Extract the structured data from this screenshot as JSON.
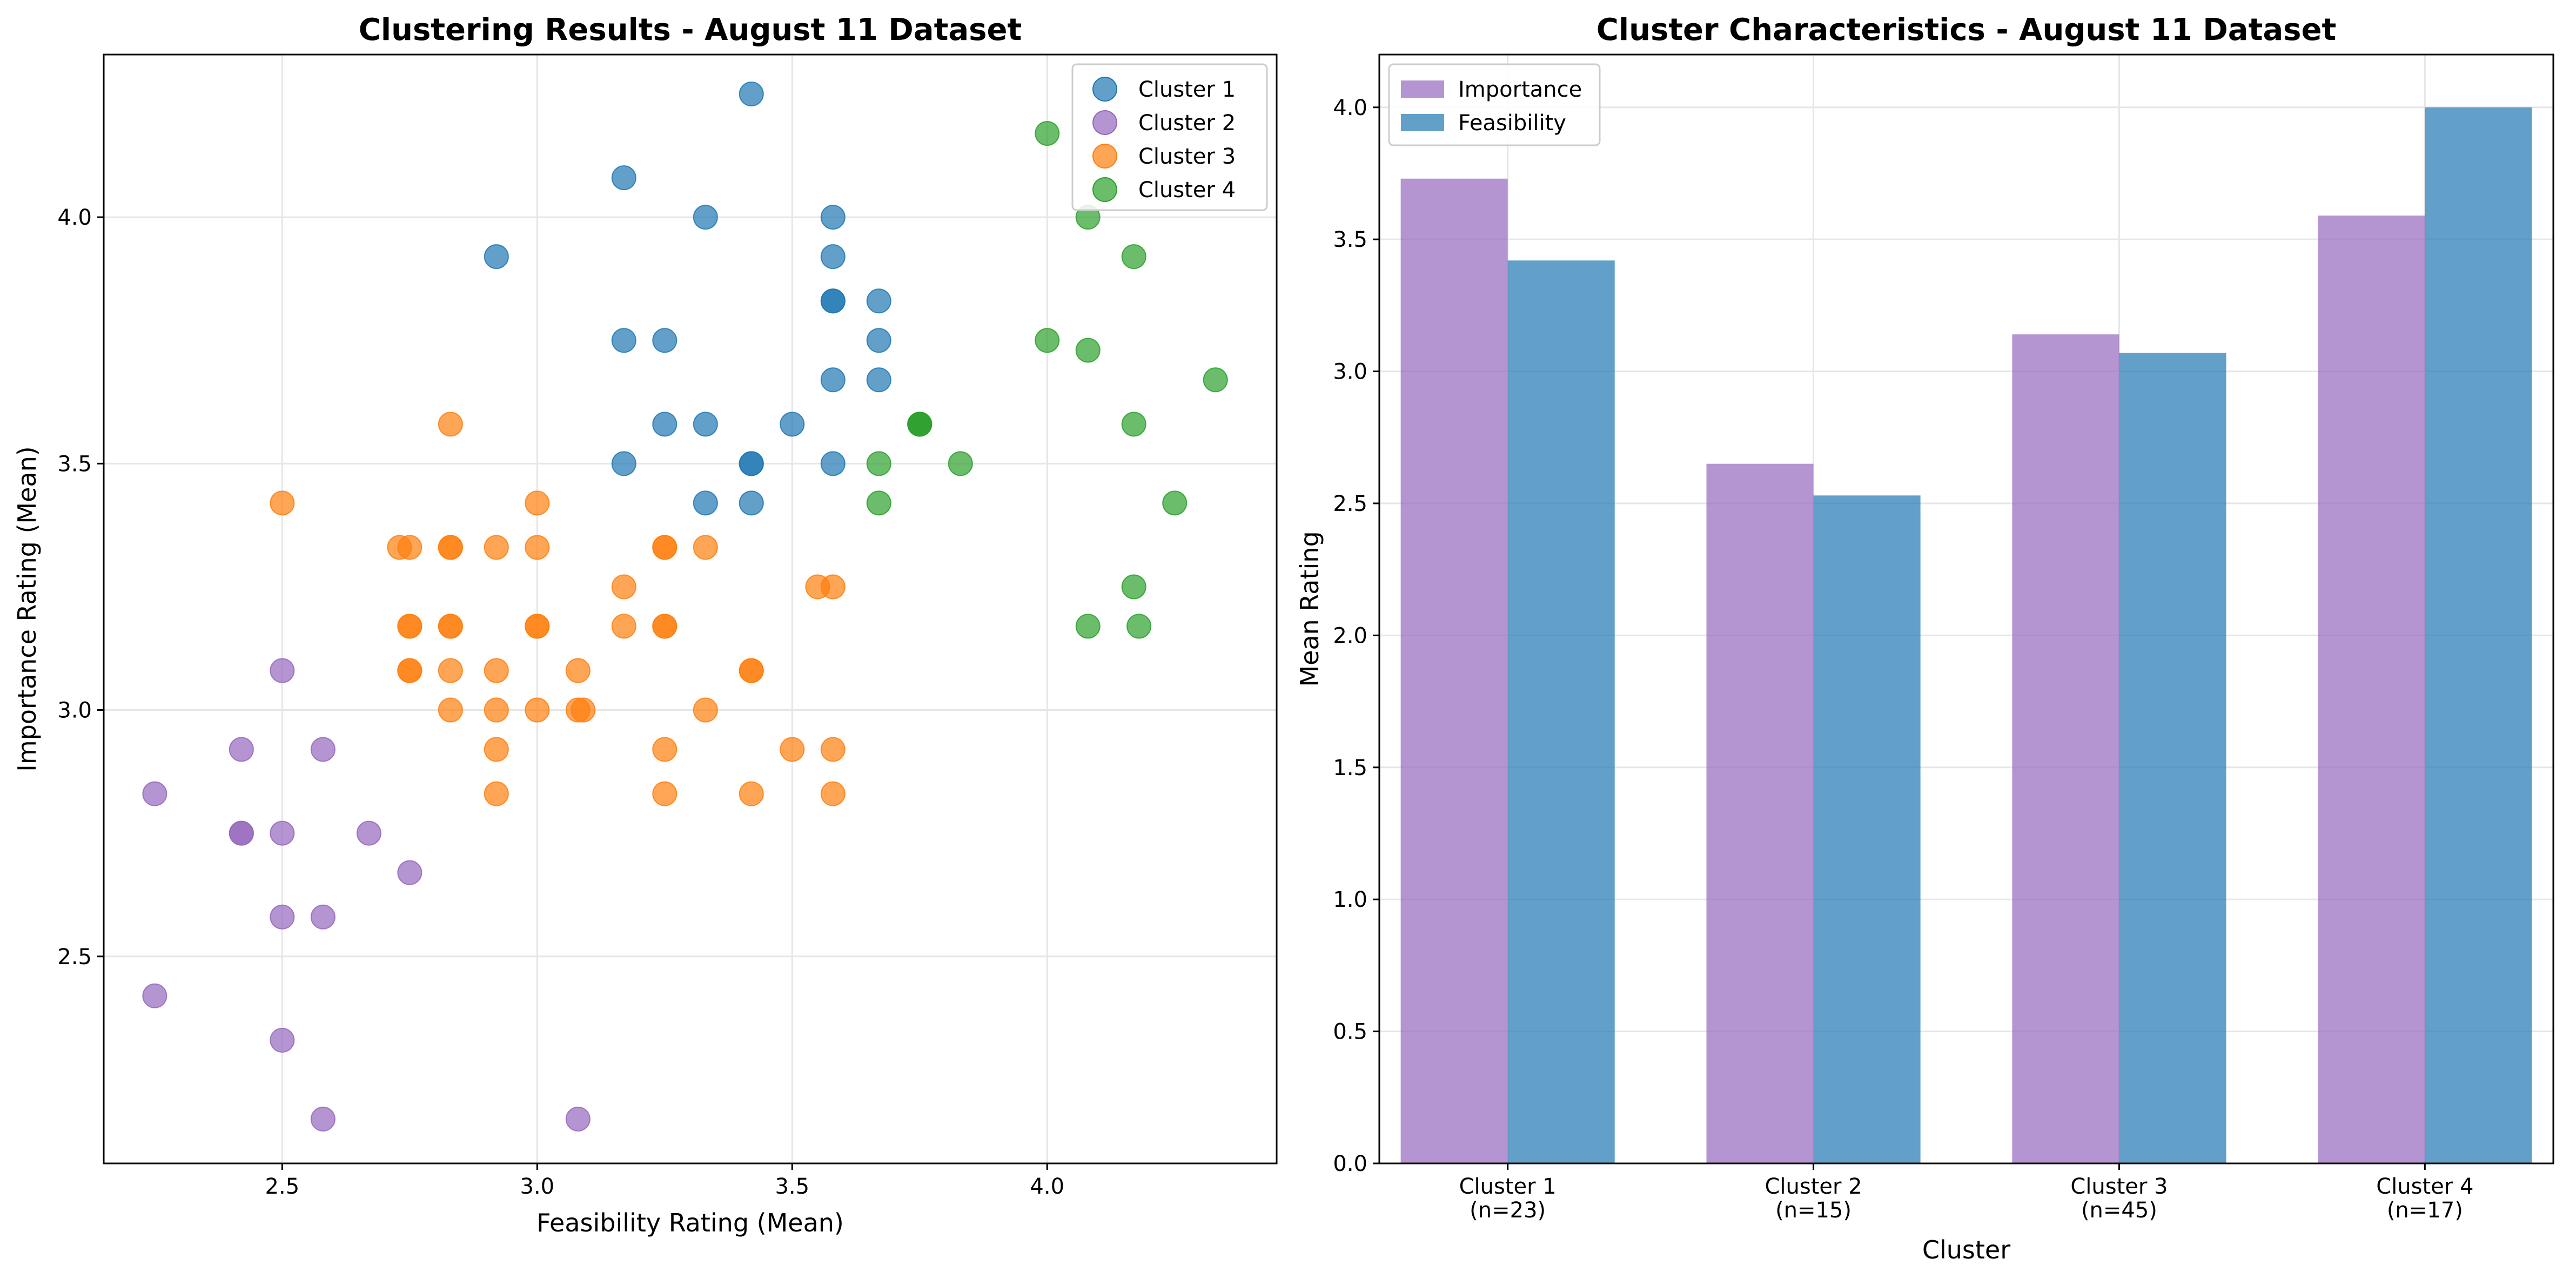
{
  "chart_data": [
    {
      "type": "scatter",
      "title": "Clustering Results - August 11 Dataset",
      "xlabel": "Feasibility Rating (Mean)",
      "ylabel": "Importance Rating (Mean)",
      "xlim": [
        2.15,
        4.45
      ],
      "ylim": [
        2.08,
        4.33
      ],
      "xticks": [
        "2.5",
        "3.0",
        "3.5",
        "4.0"
      ],
      "yticks": [
        "2.5",
        "3.0",
        "3.5",
        "4.0"
      ],
      "grid": true,
      "legend_position": "top-right",
      "series": [
        {
          "name": "Cluster 1",
          "color": "#1f77b4",
          "points": [
            [
              3.42,
              4.25
            ],
            [
              3.17,
              4.08
            ],
            [
              3.33,
              4.0
            ],
            [
              3.58,
              4.0
            ],
            [
              2.92,
              3.92
            ],
            [
              3.58,
              3.92
            ],
            [
              3.58,
              3.83
            ],
            [
              3.58,
              3.83
            ],
            [
              3.67,
              3.83
            ],
            [
              3.17,
              3.75
            ],
            [
              3.25,
              3.75
            ],
            [
              3.67,
              3.75
            ],
            [
              3.58,
              3.67
            ],
            [
              3.67,
              3.67
            ],
            [
              3.25,
              3.58
            ],
            [
              3.33,
              3.58
            ],
            [
              3.5,
              3.58
            ],
            [
              3.17,
              3.5
            ],
            [
              3.42,
              3.5
            ],
            [
              3.42,
              3.5
            ],
            [
              3.58,
              3.5
            ],
            [
              3.33,
              3.42
            ],
            [
              3.42,
              3.42
            ]
          ]
        },
        {
          "name": "Cluster 2",
          "color": "#9467bd",
          "points": [
            [
              2.5,
              3.08
            ],
            [
              2.42,
              2.92
            ],
            [
              2.58,
              2.92
            ],
            [
              2.25,
              2.83
            ],
            [
              2.42,
              2.75
            ],
            [
              2.42,
              2.75
            ],
            [
              2.5,
              2.75
            ],
            [
              2.67,
              2.75
            ],
            [
              2.75,
              2.67
            ],
            [
              2.5,
              2.58
            ],
            [
              2.58,
              2.58
            ],
            [
              2.25,
              2.42
            ],
            [
              2.5,
              2.33
            ],
            [
              2.58,
              2.17
            ],
            [
              3.08,
              2.17
            ]
          ]
        },
        {
          "name": "Cluster 3",
          "color": "#ff7f0e",
          "points": [
            [
              2.83,
              3.58
            ],
            [
              2.5,
              3.42
            ],
            [
              3.0,
              3.42
            ],
            [
              2.73,
              3.33
            ],
            [
              2.75,
              3.33
            ],
            [
              2.83,
              3.33
            ],
            [
              2.83,
              3.33
            ],
            [
              2.92,
              3.33
            ],
            [
              3.0,
              3.33
            ],
            [
              3.25,
              3.33
            ],
            [
              3.25,
              3.33
            ],
            [
              3.33,
              3.33
            ],
            [
              3.17,
              3.25
            ],
            [
              3.55,
              3.25
            ],
            [
              3.58,
              3.25
            ],
            [
              2.75,
              3.17
            ],
            [
              2.75,
              3.17
            ],
            [
              2.83,
              3.17
            ],
            [
              2.83,
              3.17
            ],
            [
              3.0,
              3.17
            ],
            [
              3.0,
              3.17
            ],
            [
              3.17,
              3.17
            ],
            [
              3.25,
              3.17
            ],
            [
              3.25,
              3.17
            ],
            [
              2.75,
              3.08
            ],
            [
              2.75,
              3.08
            ],
            [
              2.83,
              3.08
            ],
            [
              2.92,
              3.08
            ],
            [
              3.08,
              3.08
            ],
            [
              3.42,
              3.08
            ],
            [
              3.42,
              3.08
            ],
            [
              2.83,
              3.0
            ],
            [
              2.92,
              3.0
            ],
            [
              3.0,
              3.0
            ],
            [
              3.08,
              3.0
            ],
            [
              3.09,
              3.0
            ],
            [
              3.33,
              3.0
            ],
            [
              2.92,
              2.92
            ],
            [
              3.25,
              2.92
            ],
            [
              3.5,
              2.92
            ],
            [
              3.58,
              2.92
            ],
            [
              2.92,
              2.83
            ],
            [
              3.25,
              2.83
            ],
            [
              3.42,
              2.83
            ],
            [
              3.58,
              2.83
            ]
          ]
        },
        {
          "name": "Cluster 4",
          "color": "#2ca02c",
          "points": [
            [
              4.0,
              4.17
            ],
            [
              4.08,
              4.0
            ],
            [
              4.17,
              3.92
            ],
            [
              4.0,
              3.75
            ],
            [
              4.08,
              3.73
            ],
            [
              4.33,
              3.67
            ],
            [
              3.75,
              3.58
            ],
            [
              3.75,
              3.58
            ],
            [
              4.17,
              3.58
            ],
            [
              3.67,
              3.5
            ],
            [
              3.83,
              3.5
            ],
            [
              3.67,
              3.42
            ],
            [
              4.25,
              3.42
            ],
            [
              4.17,
              3.25
            ],
            [
              4.08,
              3.17
            ],
            [
              4.18,
              3.17
            ],
            [
              3.75,
              3.58
            ]
          ]
        }
      ]
    },
    {
      "type": "bar",
      "title": "Cluster Characteristics - August 11 Dataset",
      "xlabel": "Cluster",
      "ylabel": "Mean Rating",
      "ylim": [
        0,
        4.2
      ],
      "yticks": [
        "0.0",
        "0.5",
        "1.0",
        "1.5",
        "2.0",
        "2.5",
        "3.0",
        "3.5",
        "4.0"
      ],
      "grid": true,
      "legend_position": "top-left",
      "categories": [
        {
          "line1": "Cluster 1",
          "line2": "(n=23)"
        },
        {
          "line1": "Cluster 2",
          "line2": "(n=15)"
        },
        {
          "line1": "Cluster 3",
          "line2": "(n=45)"
        },
        {
          "line1": "Cluster 4",
          "line2": "(n=17)"
        }
      ],
      "series": [
        {
          "name": "Importance",
          "color": "#9467bd",
          "values": [
            3.73,
            2.65,
            3.14,
            3.59
          ]
        },
        {
          "name": "Feasibility",
          "color": "#1f77b4",
          "values": [
            3.42,
            2.53,
            3.07,
            4.0
          ]
        }
      ]
    }
  ]
}
